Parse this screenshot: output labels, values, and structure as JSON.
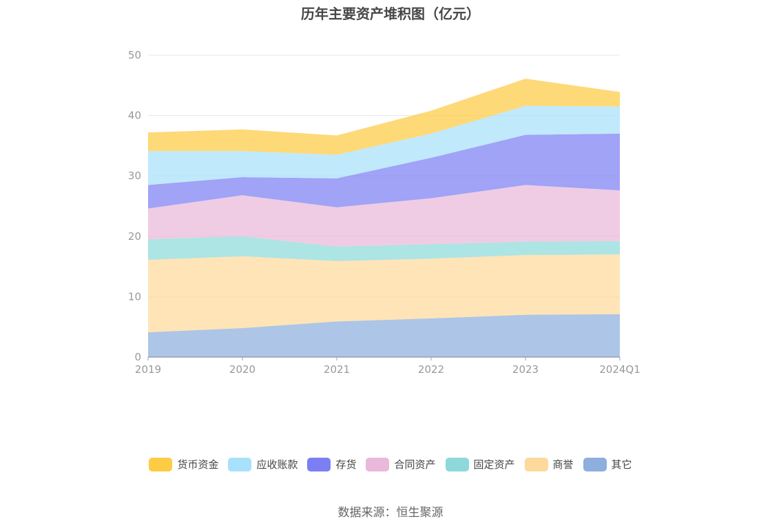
{
  "title": "历年主要资产堆积图（亿元）",
  "source": "数据来源：恒生聚源",
  "chart_data": {
    "type": "area",
    "stacked": true,
    "title": "历年主要资产堆积图（亿元）",
    "x": [
      "2019",
      "2020",
      "2021",
      "2022",
      "2023",
      "2024Q1"
    ],
    "ylim": [
      0,
      50
    ],
    "yticks": [
      0,
      10,
      20,
      30,
      40,
      50
    ],
    "grid": true,
    "legend_position": "bottom",
    "series": [
      {
        "name": "其它",
        "color": "#8eaedd",
        "values": [
          4.1,
          4.8,
          5.9,
          6.4,
          7.0,
          7.1
        ]
      },
      {
        "name": "商誉",
        "color": "#fdd99b",
        "values": [
          12.0,
          11.9,
          10.0,
          9.9,
          9.9,
          9.9
        ]
      },
      {
        "name": "固定资产",
        "color": "#8dd9d9",
        "values": [
          3.4,
          3.3,
          2.4,
          2.4,
          2.2,
          2.2
        ]
      },
      {
        "name": "合同资产",
        "color": "#e9b8da",
        "values": [
          5.1,
          6.8,
          6.5,
          7.6,
          9.4,
          8.4
        ]
      },
      {
        "name": "存货",
        "color": "#7b7ff3",
        "values": [
          3.9,
          3.0,
          4.8,
          6.7,
          8.3,
          9.4
        ]
      },
      {
        "name": "应收账款",
        "color": "#a7e1fb",
        "values": [
          5.6,
          4.3,
          3.9,
          4.0,
          4.8,
          4.5
        ]
      },
      {
        "name": "货币资金",
        "color": "#fecb44",
        "values": [
          3.1,
          3.6,
          3.2,
          3.8,
          4.5,
          2.4
        ]
      }
    ]
  }
}
